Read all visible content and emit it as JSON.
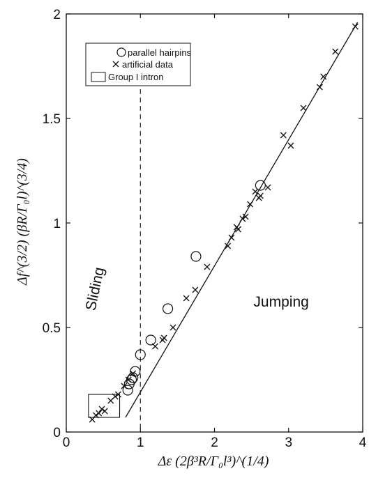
{
  "chart_data": {
    "type": "scatter",
    "xlim": [
      0,
      4
    ],
    "ylim": [
      0,
      2
    ],
    "xticks": [
      "0",
      "1",
      "2",
      "3",
      "4"
    ],
    "yticks": [
      "0",
      "0.5",
      "1",
      "1.5",
      "2"
    ],
    "xlabel": "Δε (2β³R/Γ₀l³)^(1/4)",
    "ylabel": "Δf^(3/2) (βR/Γ₀l)^(3/4)",
    "grid": false,
    "legend_position": "top-left",
    "series": [
      {
        "name": "parallel hairpins",
        "marker": "circle",
        "points": [
          [
            0.83,
            0.2
          ],
          [
            0.85,
            0.23
          ],
          [
            0.88,
            0.25
          ],
          [
            0.9,
            0.26
          ],
          [
            0.93,
            0.29
          ],
          [
            1.0,
            0.37
          ],
          [
            1.14,
            0.44
          ],
          [
            1.37,
            0.59
          ],
          [
            1.75,
            0.84
          ],
          [
            2.62,
            1.18
          ]
        ]
      },
      {
        "name": "artificial data",
        "marker": "x",
        "points": [
          [
            0.35,
            0.06
          ],
          [
            0.4,
            0.08
          ],
          [
            0.44,
            0.09
          ],
          [
            0.48,
            0.11
          ],
          [
            0.52,
            0.1
          ],
          [
            0.6,
            0.15
          ],
          [
            0.66,
            0.17
          ],
          [
            0.7,
            0.18
          ],
          [
            0.78,
            0.22
          ],
          [
            0.84,
            0.25
          ],
          [
            0.9,
            0.28
          ],
          [
            1.2,
            0.41
          ],
          [
            1.3,
            0.44
          ],
          [
            1.32,
            0.45
          ],
          [
            1.44,
            0.5
          ],
          [
            1.62,
            0.64
          ],
          [
            1.74,
            0.68
          ],
          [
            1.9,
            0.79
          ],
          [
            2.18,
            0.89
          ],
          [
            2.23,
            0.93
          ],
          [
            2.3,
            0.98
          ],
          [
            2.32,
            0.97
          ],
          [
            2.38,
            1.02
          ],
          [
            2.42,
            1.03
          ],
          [
            2.48,
            1.09
          ],
          [
            2.55,
            1.15
          ],
          [
            2.6,
            1.12
          ],
          [
            2.62,
            1.13
          ],
          [
            2.72,
            1.17
          ],
          [
            2.93,
            1.42
          ],
          [
            3.03,
            1.37
          ],
          [
            3.2,
            1.55
          ],
          [
            3.42,
            1.65
          ],
          [
            3.47,
            1.7
          ],
          [
            3.63,
            1.82
          ],
          [
            3.9,
            1.94
          ]
        ]
      }
    ],
    "fit_line": [
      [
        0.8,
        0.07
      ],
      [
        3.93,
        1.96
      ]
    ],
    "threshold_x": 1.0,
    "highlight_box": {
      "name": "Group I intron",
      "x": [
        0.3,
        0.72
      ],
      "y": [
        0.07,
        0.18
      ]
    },
    "regions": [
      {
        "label": "Sliding",
        "x": 0.45,
        "y": 0.68,
        "rotation": -78
      },
      {
        "label": "Jumping",
        "x": 2.9,
        "y": 0.6,
        "rotation": 0
      }
    ],
    "legend_entries": [
      "parallel hairpins",
      "artificial data",
      "Group I intron"
    ]
  }
}
